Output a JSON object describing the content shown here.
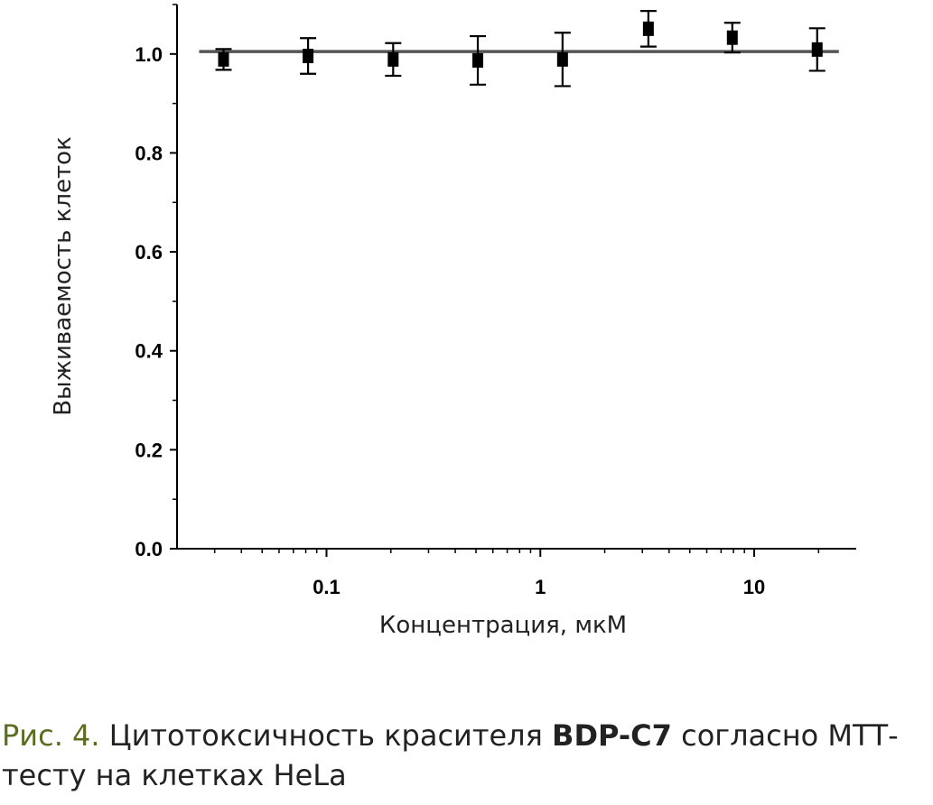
{
  "chart_data": {
    "type": "scatter",
    "title": "",
    "xlabel": "Концентрация, мкМ",
    "ylabel": "Выживаемость клеток",
    "xscale": "log",
    "xlim": [
      0.02,
      30
    ],
    "ylim": [
      0,
      1.1
    ],
    "x_ticks": [
      0.1,
      1,
      10
    ],
    "x_tick_labels": [
      "0.1",
      "1",
      "10"
    ],
    "y_ticks": [
      0.0,
      0.2,
      0.4,
      0.6,
      0.8,
      1.0
    ],
    "y_tick_labels": [
      "0.0",
      "0.2",
      "0.4",
      "0.6",
      "0.8",
      "1.0"
    ],
    "grid": false,
    "series": [
      {
        "name": "BDP-C7",
        "marker": "square",
        "color": "#000000",
        "x": [
          0.033,
          0.082,
          0.205,
          0.51,
          1.27,
          3.2,
          7.9,
          19.7
        ],
        "y": [
          0.989,
          0.996,
          0.989,
          0.987,
          0.989,
          1.051,
          1.033,
          1.009
        ],
        "error": [
          0.021,
          0.036,
          0.033,
          0.049,
          0.054,
          0.036,
          0.03,
          0.043
        ]
      }
    ],
    "fit_line": {
      "y": 1.005,
      "color": "#555555"
    }
  },
  "caption": {
    "figure_label": "Рис. 4.",
    "text_before": " Цитотоксичность красителя ",
    "compound": "BDP-C7",
    "text_after": " согласно МТТ-тесту на клетках HeLa"
  }
}
